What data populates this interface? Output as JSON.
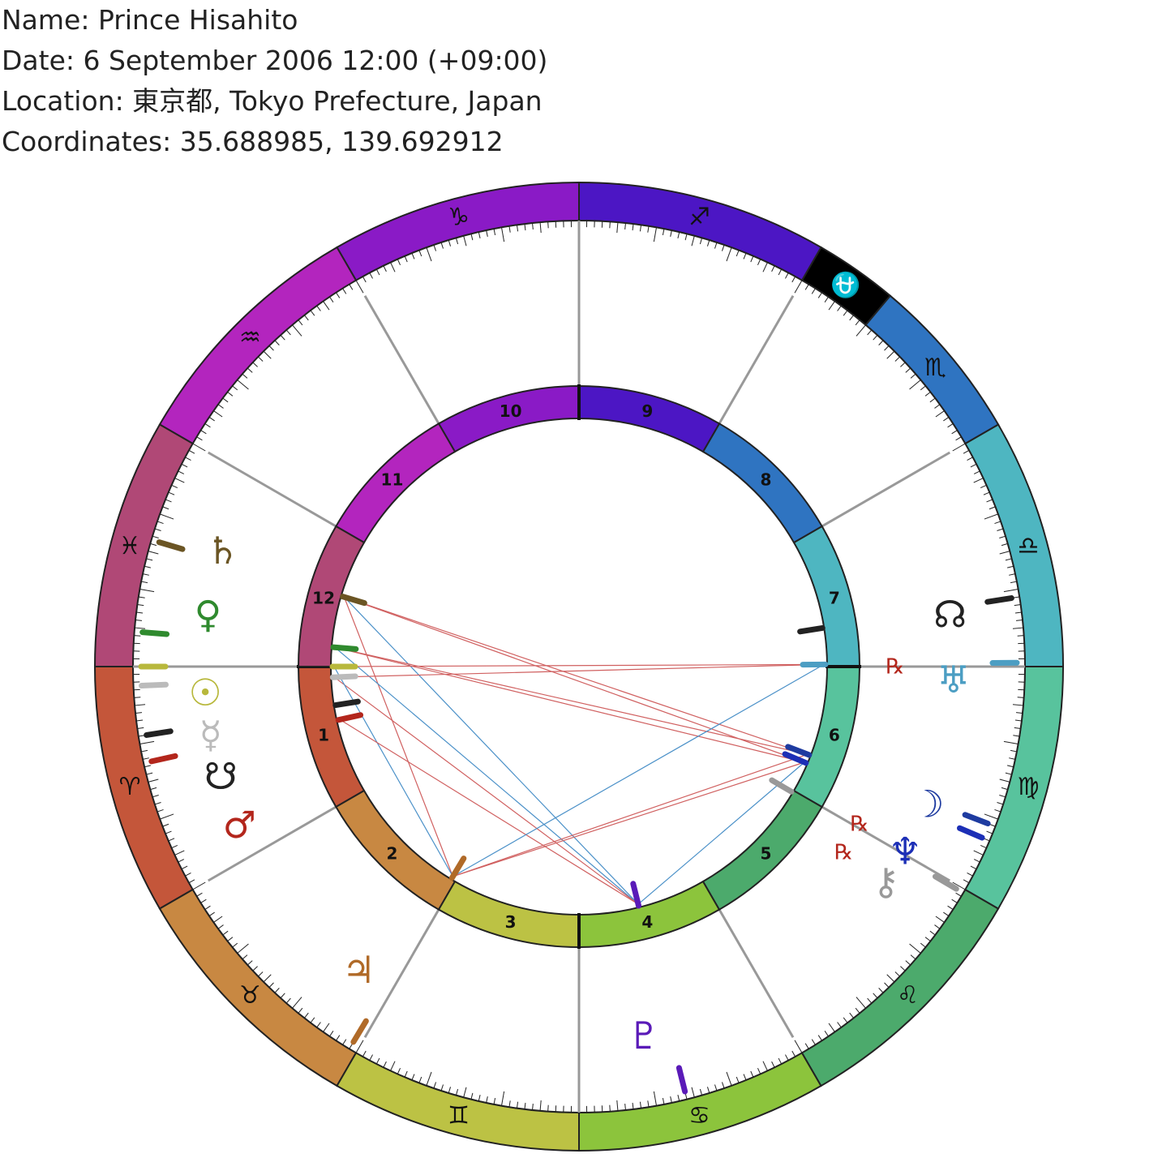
{
  "header": {
    "name_line": "Name: Prince Hisahito",
    "date_line": "Date: 6 September 2006 12:00 (+09:00)",
    "location_line": "Location: 東京都, Tokyo Prefecture, Japan",
    "coords_line": "Coordinates: 35.688985, 139.692912"
  },
  "zodiac": [
    {
      "name": "aries",
      "glyph": "♈",
      "start": 0,
      "color": "#c4563a"
    },
    {
      "name": "taurus",
      "glyph": "♉",
      "start": 30,
      "color": "#c88842"
    },
    {
      "name": "gemini",
      "glyph": "♊",
      "start": 60,
      "color": "#bcc244"
    },
    {
      "name": "cancer",
      "glyph": "♋",
      "start": 90,
      "color": "#8cc43c"
    },
    {
      "name": "leo",
      "glyph": "♌",
      "start": 120,
      "color": "#4caa6c"
    },
    {
      "name": "virgo",
      "glyph": "♍",
      "start": 150,
      "color": "#58c39d"
    },
    {
      "name": "libra",
      "glyph": "♎",
      "start": 180,
      "color": "#4eb6c1"
    },
    {
      "name": "scorpio",
      "glyph": "♏",
      "start": 210,
      "color": "#2f74c1"
    },
    {
      "name": "ophiuchus",
      "glyph": "⛎",
      "start": 230,
      "color": "#000000"
    },
    {
      "name": "sagittarius",
      "glyph": "♐",
      "start": 240,
      "color": "#4c16c4"
    },
    {
      "name": "capricorn",
      "glyph": "♑",
      "start": 270,
      "color": "#8a1ac6"
    },
    {
      "name": "aquarius",
      "glyph": "♒",
      "start": 300,
      "color": "#b325be"
    },
    {
      "name": "pisces",
      "glyph": "♓",
      "start": 330,
      "color": "#b04876"
    }
  ],
  "houses": [
    {
      "num": "1",
      "start": 0,
      "color": "#c4563a"
    },
    {
      "num": "2",
      "start": 30,
      "color": "#c88842"
    },
    {
      "num": "3",
      "start": 60,
      "color": "#bcc244"
    },
    {
      "num": "4",
      "start": 90,
      "color": "#8cc43c"
    },
    {
      "num": "5",
      "start": 120,
      "color": "#4caa6c"
    },
    {
      "num": "6",
      "start": 150,
      "color": "#58c39d"
    },
    {
      "num": "7",
      "start": 180,
      "color": "#4eb6c1"
    },
    {
      "num": "8",
      "start": 210,
      "color": "#2f74c1"
    },
    {
      "num": "9",
      "start": 240,
      "color": "#4c16c4"
    },
    {
      "num": "10",
      "start": 270,
      "color": "#8a1ac6"
    },
    {
      "num": "11",
      "start": 300,
      "color": "#b325be"
    },
    {
      "num": "12",
      "start": 330,
      "color": "#b04876"
    }
  ],
  "planets": [
    {
      "name": "saturn",
      "glyph": "♄",
      "pos": 343.5,
      "gpos": 342,
      "color": "#6b5524",
      "retro": ""
    },
    {
      "name": "venus",
      "glyph": "♀",
      "pos": 355.5,
      "gpos": 352,
      "color": "#2f8a2e",
      "retro": ""
    },
    {
      "name": "sun",
      "glyph": "☉",
      "pos": 0,
      "gpos": 4,
      "color": "#b8b83c",
      "retro": ""
    },
    {
      "name": "mercury",
      "glyph": "☿",
      "pos": 2.5,
      "gpos": 10.5,
      "color": "#bbbbbb",
      "retro": ""
    },
    {
      "name": "south-node",
      "glyph": "☋",
      "pos": 9,
      "gpos": 17,
      "color": "#222222",
      "retro": ""
    },
    {
      "name": "mars",
      "glyph": "♂",
      "pos": 12.5,
      "gpos": 25,
      "color": "#b3261c",
      "retro": ""
    },
    {
      "name": "jupiter",
      "glyph": "♃",
      "pos": 59,
      "gpos": 54,
      "color": "#b06a28",
      "retro": ""
    },
    {
      "name": "pluto",
      "glyph": "♇",
      "pos": 104,
      "gpos": 100,
      "color": "#5a1ab8",
      "retro": ""
    },
    {
      "name": "chiron",
      "glyph": "⚷",
      "pos": 149.5,
      "gpos": 145,
      "color": "#999999",
      "retro": "℞"
    },
    {
      "name": "neptune",
      "glyph": "♆",
      "pos": 157,
      "gpos": 150.5,
      "color": "#1c2fb6",
      "retro": "℞"
    },
    {
      "name": "moon",
      "glyph": "☽",
      "pos": 159,
      "gpos": 158.5,
      "color": "#1e3ba0",
      "retro": ""
    },
    {
      "name": "uranus",
      "glyph": "♅",
      "pos": 180.5,
      "gpos": 178,
      "color": "#4c9ec3",
      "retro": "℞"
    },
    {
      "name": "north-node",
      "glyph": "☊",
      "pos": 189,
      "gpos": 188,
      "color": "#222222",
      "retro": ""
    }
  ],
  "aspects": [
    {
      "from": "saturn",
      "to": "neptune",
      "color": "#d06060"
    },
    {
      "from": "saturn",
      "to": "moon",
      "color": "#d06060"
    },
    {
      "from": "saturn",
      "to": "jupiter",
      "color": "#d06060"
    },
    {
      "from": "saturn",
      "to": "pluto",
      "color": "#4a90c8"
    },
    {
      "from": "venus",
      "to": "neptune",
      "color": "#d06060"
    },
    {
      "from": "venus",
      "to": "moon",
      "color": "#d06060"
    },
    {
      "from": "venus",
      "to": "pluto",
      "color": "#4a90c8"
    },
    {
      "from": "sun",
      "to": "uranus",
      "color": "#d06060"
    },
    {
      "from": "mercury",
      "to": "uranus",
      "color": "#d06060"
    },
    {
      "from": "mercury",
      "to": "pluto",
      "color": "#d06060"
    },
    {
      "from": "sun",
      "to": "jupiter",
      "color": "#4a90c8"
    },
    {
      "from": "mars",
      "to": "pluto",
      "color": "#d06060"
    },
    {
      "from": "jupiter",
      "to": "neptune",
      "color": "#d06060"
    },
    {
      "from": "jupiter",
      "to": "moon",
      "color": "#d06060"
    },
    {
      "from": "jupiter",
      "to": "uranus",
      "color": "#4a90c8"
    },
    {
      "from": "pluto",
      "to": "neptune",
      "color": "#4a90c8"
    }
  ]
}
